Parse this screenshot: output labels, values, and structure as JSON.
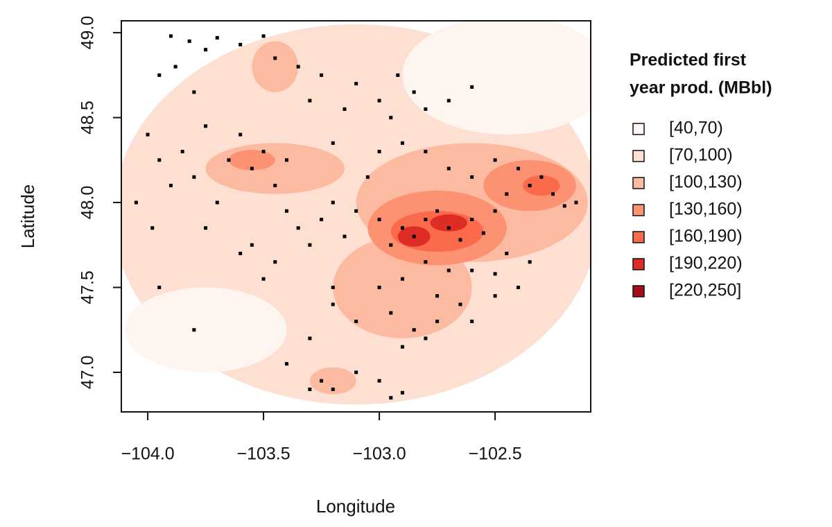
{
  "chart_data": {
    "type": "scatter",
    "x_label": "Longitude",
    "y_label": "Latitude",
    "legend_title": [
      "Predicted first",
      "year prod. (MBbl)"
    ],
    "legend_categories": [
      "[40,70)",
      "[70,100)",
      "[100,130)",
      "[130,160)",
      "[160,190)",
      "[190,220)",
      "[220,250]"
    ],
    "legend_colors": [
      "#fff5f0",
      "#fee0d2",
      "#fcbba1",
      "#fc9272",
      "#fb6a4a",
      "#de2d26",
      "#a50f15"
    ],
    "xlim": [
      -104.114,
      -102.087
    ],
    "ylim": [
      46.767,
      49.07
    ],
    "xticks": [
      {
        "value": -104,
        "label": "−104.0"
      },
      {
        "value": -103.5,
        "label": "−103.5"
      },
      {
        "value": -103,
        "label": "−103.0"
      },
      {
        "value": -102.5,
        "label": "−102.5"
      }
    ],
    "yticks": [
      {
        "value": 47,
        "label": "47.0"
      },
      47.5,
      {
        "value": 48,
        "label": "48.0"
      },
      48.5,
      {
        "value": 49,
        "label": "49.0"
      }
    ],
    "regions": [
      {
        "x": -103.1,
        "y": 47.93,
        "rx": 1.05,
        "ry": 1.12,
        "level": 1
      },
      {
        "x": -102.45,
        "y": 48.75,
        "rx": 0.45,
        "ry": 0.35,
        "level": 0
      },
      {
        "x": -103.75,
        "y": 47.25,
        "rx": 0.35,
        "ry": 0.25,
        "level": 0
      },
      {
        "x": -103.45,
        "y": 48.2,
        "rx": 0.3,
        "ry": 0.15,
        "level": 2
      },
      {
        "x": -102.6,
        "y": 48.0,
        "rx": 0.5,
        "ry": 0.35,
        "level": 2
      },
      {
        "x": -102.9,
        "y": 47.5,
        "rx": 0.3,
        "ry": 0.3,
        "level": 2
      },
      {
        "x": -103.2,
        "y": 46.95,
        "rx": 0.1,
        "ry": 0.08,
        "level": 2
      },
      {
        "x": -103.45,
        "y": 48.8,
        "rx": 0.1,
        "ry": 0.15,
        "level": 2
      },
      {
        "x": -102.75,
        "y": 47.85,
        "rx": 0.3,
        "ry": 0.22,
        "level": 3
      },
      {
        "x": -102.35,
        "y": 48.1,
        "rx": 0.2,
        "ry": 0.15,
        "level": 3
      },
      {
        "x": -103.55,
        "y": 48.25,
        "rx": 0.1,
        "ry": 0.06,
        "level": 3
      },
      {
        "x": -102.75,
        "y": 47.83,
        "rx": 0.2,
        "ry": 0.12,
        "level": 4
      },
      {
        "x": -102.3,
        "y": 48.1,
        "rx": 0.08,
        "ry": 0.06,
        "level": 4
      },
      {
        "x": -102.85,
        "y": 47.8,
        "rx": 0.07,
        "ry": 0.06,
        "level": 5
      },
      {
        "x": -102.7,
        "y": 47.88,
        "rx": 0.08,
        "ry": 0.05,
        "level": 5
      }
    ],
    "point_color": "#000000",
    "x": [
      -103.9,
      -103.82,
      -103.75,
      -103.7,
      -103.6,
      -103.5,
      -103.45,
      -103.35,
      -103.25,
      -103.88,
      -103.95,
      -103.8,
      -103.1,
      -103.0,
      -102.92,
      -102.85,
      -102.8,
      -102.7,
      -102.6,
      -102.95,
      -103.15,
      -103.3,
      -104.0,
      -103.95,
      -104.05,
      -103.98,
      -103.9,
      -103.85,
      -103.75,
      -103.8,
      -103.7,
      -103.65,
      -103.6,
      -103.55,
      -103.5,
      -103.45,
      -103.4,
      -103.4,
      -103.35,
      -103.3,
      -103.25,
      -103.2,
      -103.15,
      -103.1,
      -103.05,
      -103.0,
      -102.95,
      -102.9,
      -102.85,
      -102.8,
      -102.75,
      -102.7,
      -102.65,
      -102.6,
      -102.55,
      -102.5,
      -102.45,
      -102.4,
      -102.35,
      -102.3,
      -102.25,
      -102.2,
      -102.15,
      -102.5,
      -102.6,
      -102.7,
      -102.8,
      -102.9,
      -103.0,
      -103.2,
      -102.7,
      -102.6,
      -102.5,
      -102.8,
      -102.9,
      -102.75,
      -102.65,
      -102.45,
      -102.35,
      -103.0,
      -102.95,
      -102.85,
      -102.8,
      -102.9,
      -102.75,
      -103.1,
      -103.2,
      -102.6,
      -103.25,
      -103.2,
      -103.1,
      -103.0,
      -102.9,
      -102.95,
      -103.3,
      -103.95,
      -103.8,
      -103.5,
      -103.2,
      -103.3,
      -103.4,
      -102.5,
      -102.4,
      -103.75,
      -103.6,
      -103.55,
      -103.45
    ],
    "y": [
      48.98,
      48.95,
      48.9,
      48.97,
      48.93,
      48.98,
      48.85,
      48.8,
      48.75,
      48.8,
      48.75,
      48.65,
      48.7,
      48.6,
      48.75,
      48.65,
      48.55,
      48.6,
      48.68,
      48.5,
      48.55,
      48.6,
      48.4,
      48.25,
      48.0,
      47.85,
      48.1,
      48.3,
      48.45,
      48.15,
      48.0,
      48.25,
      48.4,
      48.2,
      48.3,
      48.1,
      48.25,
      47.95,
      47.85,
      47.75,
      47.9,
      48.0,
      47.8,
      47.95,
      48.15,
      47.9,
      47.75,
      47.85,
      47.8,
      47.9,
      47.95,
      47.85,
      47.78,
      47.9,
      47.82,
      47.95,
      48.05,
      48.2,
      48.1,
      48.15,
      48.05,
      47.98,
      48.0,
      48.25,
      48.15,
      48.2,
      48.3,
      48.35,
      48.3,
      48.35,
      47.6,
      47.6,
      47.58,
      47.65,
      47.55,
      47.45,
      47.4,
      47.7,
      47.65,
      47.5,
      47.35,
      47.25,
      47.2,
      47.15,
      47.3,
      47.3,
      47.4,
      47.3,
      46.95,
      46.9,
      47.0,
      46.95,
      46.88,
      46.85,
      46.9,
      47.5,
      47.25,
      47.55,
      47.5,
      47.2,
      47.05,
      47.45,
      47.5,
      47.85,
      47.7,
      47.75,
      47.65
    ]
  }
}
